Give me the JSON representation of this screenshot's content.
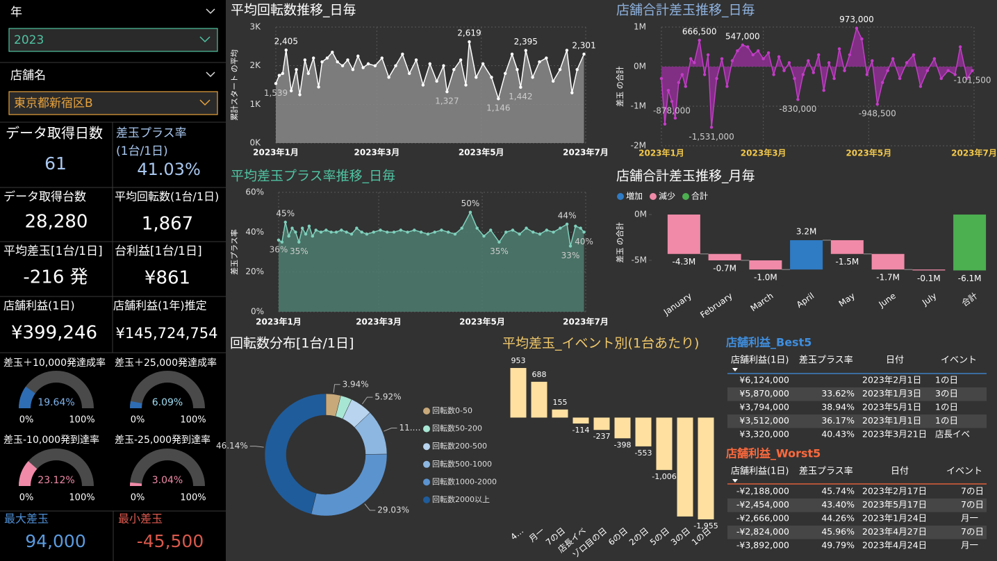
{
  "slicers": [
    {
      "label": "年",
      "selected": "2023",
      "color": "#4fc3a1"
    },
    {
      "label": "店舗名",
      "selected": "東京都新宿区B",
      "color": "#e8a33d"
    }
  ],
  "kpis": [
    {
      "title": "データ取得日数",
      "value": "61"
    },
    {
      "title": "差玉プラス率",
      "subtitle": "(1台/1日)",
      "value": "41.03%"
    },
    {
      "title": "データ取得台数",
      "value": "28,280"
    },
    {
      "title": "平均回転数(1台/1日)",
      "value": "1,867"
    },
    {
      "title": "平均差玉[1台/1日]",
      "value": "-216 発"
    },
    {
      "title": "台利益[1台/1日]",
      "value": "¥861"
    },
    {
      "title": "店舗利益(1日)",
      "value": "¥399,246"
    },
    {
      "title": "店舗利益(1年)推定",
      "value": "¥145,724,754"
    },
    {
      "title": "最大差玉",
      "value": "94,000"
    },
    {
      "title": "最小差玉",
      "value": "-45,500"
    }
  ],
  "gauges": [
    {
      "title": "差玉＋10,000発達成率",
      "value": 19.64,
      "value_label": "19.64%",
      "range": [
        {
          "value": 0,
          "label": "0%"
        },
        {
          "value": 100,
          "label": "100%"
        }
      ],
      "color": "#2e6db4",
      "text_color": "#7fb2ea"
    },
    {
      "title": "差玉＋25,000発達成率",
      "value": 6.09,
      "value_label": "6.09%",
      "range": [
        {
          "value": 0,
          "label": "0%"
        },
        {
          "value": 100,
          "label": "100%"
        }
      ],
      "color": "#2e6db4",
      "text_color": "#9fdcf2"
    },
    {
      "title": "差玉-10,000発到達率",
      "value": 23.12,
      "value_label": "23.12%",
      "range": [
        {
          "value": 0,
          "label": "0%"
        },
        {
          "value": 100,
          "label": "100%"
        }
      ],
      "color": "#f08aa8",
      "text_color": "#f08aa8"
    },
    {
      "title": "差玉-25,000発到達率",
      "value": 3.04,
      "value_label": "3.04%",
      "range": [
        {
          "value": 0,
          "label": "0%"
        },
        {
          "value": 100,
          "label": "100%"
        }
      ],
      "color": "#f08aa8",
      "text_color": "#f08aa8"
    }
  ],
  "chart_data": [
    {
      "type": "area",
      "title": "平均回転数推移_日毎",
      "ylabel": "累計スタート の平均",
      "x": [
        0,
        2,
        4,
        6,
        9,
        12,
        14,
        17,
        19,
        22,
        25,
        27,
        30,
        33,
        36,
        39,
        42,
        45,
        48,
        51,
        54,
        58,
        62,
        66,
        70,
        74,
        78,
        82,
        86,
        90,
        94,
        98,
        100,
        104,
        108,
        111,
        113,
        117,
        121,
        126,
        130,
        134,
        138,
        141,
        143,
        146,
        150,
        154,
        158,
        162,
        166,
        170,
        173,
        176,
        180
      ],
      "values": [
        1539,
        1750,
        1800,
        2405,
        1350,
        1900,
        1250,
        2150,
        1800,
        2200,
        1450,
        2100,
        2200,
        2350,
        2100,
        2000,
        2150,
        1900,
        2250,
        1950,
        2050,
        2000,
        2200,
        1700,
        2000,
        2300,
        1800,
        2150,
        1500,
        2050,
        1600,
        2000,
        1327,
        1900,
        2150,
        1500,
        2619,
        1700,
        2050,
        1700,
        1146,
        1800,
        2300,
        1900,
        1442,
        2395,
        1700,
        2100,
        2200,
        1600,
        1900,
        2400,
        1300,
        1900,
        2301
      ],
      "value_labels": [
        "1,539",
        null,
        null,
        "2,405",
        null,
        null,
        null,
        null,
        null,
        null,
        null,
        null,
        null,
        null,
        null,
        null,
        null,
        null,
        null,
        null,
        null,
        null,
        null,
        null,
        null,
        null,
        null,
        null,
        null,
        null,
        null,
        null,
        "1,327",
        null,
        null,
        null,
        "2,619",
        null,
        null,
        null,
        "1,146",
        null,
        null,
        null,
        "1,442",
        "2,395",
        null,
        null,
        null,
        null,
        null,
        null,
        null,
        null,
        "2,301"
      ],
      "xlim": [
        0,
        181
      ],
      "xticks": [
        {
          "value": 0,
          "label": "2023年1月"
        },
        {
          "value": 59,
          "label": "2023年3月"
        },
        {
          "value": 120,
          "label": "2023年5月"
        },
        {
          "value": 181,
          "label": "2023年7月"
        }
      ],
      "ylim": [
        0,
        3000
      ],
      "yticks": [
        {
          "value": 0,
          "label": "0K"
        },
        {
          "value": 1000,
          "label": "1K"
        },
        {
          "value": 2000,
          "label": "2K"
        },
        {
          "value": 3000,
          "label": "3K"
        }
      ],
      "color": "#ffffff",
      "fill": "#8a8a8a",
      "grid": true
    },
    {
      "type": "area",
      "title": "店舗合計差玉推移_日毎",
      "ylabel": "差玉 の合計",
      "x": [
        0,
        2,
        4,
        6,
        8,
        10,
        12,
        14,
        17,
        19,
        22,
        25,
        27,
        29,
        32,
        35,
        38,
        41,
        44,
        47,
        50,
        53,
        56,
        59,
        62,
        65,
        68,
        71,
        74,
        77,
        79,
        82,
        85,
        88,
        91,
        94,
        97,
        100,
        103,
        106,
        109,
        113,
        116,
        119,
        122,
        125,
        128,
        131,
        134,
        138,
        142,
        146,
        150,
        154,
        158,
        162,
        166,
        170,
        173,
        177,
        180
      ],
      "values": [
        -300000,
        -1450000,
        -600000,
        -878000,
        -1300000,
        -400000,
        -200000,
        -500000,
        200000,
        100000,
        666500,
        -200000,
        300000,
        -1531000,
        -300000,
        200000,
        -500000,
        150000,
        400000,
        547000,
        500000,
        300000,
        400000,
        200000,
        350000,
        -200000,
        250000,
        -100000,
        100000,
        -300000,
        -830000,
        -200000,
        150000,
        -150000,
        300000,
        -600000,
        100000,
        -300000,
        450000,
        -100000,
        300000,
        973000,
        700000,
        -200000,
        150000,
        -948500,
        -400000,
        -100000,
        200000,
        -300000,
        100000,
        300000,
        -500000,
        -100000,
        200000,
        -300000,
        -100000,
        -200000,
        500000,
        -300000,
        -101500
      ],
      "value_labels": [
        null,
        null,
        null,
        "-878,000",
        null,
        null,
        null,
        null,
        null,
        null,
        "666,500",
        null,
        null,
        "-1,531,000",
        null,
        null,
        null,
        null,
        null,
        "547,000",
        null,
        null,
        null,
        null,
        null,
        null,
        null,
        null,
        null,
        null,
        "-830,000",
        null,
        null,
        null,
        null,
        null,
        null,
        null,
        null,
        null,
        null,
        "973,000",
        null,
        null,
        null,
        "-948,500",
        null,
        null,
        null,
        null,
        null,
        null,
        null,
        null,
        null,
        null,
        null,
        null,
        null,
        null,
        "-101,500"
      ],
      "xlim": [
        0,
        181
      ],
      "xticks": [
        {
          "value": 0,
          "label": "2023年1月"
        },
        {
          "value": 59,
          "label": "2023年3月"
        },
        {
          "value": 120,
          "label": "2023年5月"
        },
        {
          "value": 181,
          "label": "2023年7月"
        }
      ],
      "ylim": [
        -2000000,
        1000000
      ],
      "yticks": [
        {
          "value": -2000000,
          "label": "-2M"
        },
        {
          "value": -1000000,
          "label": "-1M"
        },
        {
          "value": 0,
          "label": "0M"
        },
        {
          "value": 1000000,
          "label": "1M"
        }
      ],
      "color": "#c43cc8",
      "fill": "#8e2f93",
      "grid": true
    },
    {
      "type": "area",
      "title": "平均差玉プラス率推移_日毎",
      "ylabel": "差玉プラス率",
      "x": [
        0,
        2,
        4,
        6,
        8,
        10,
        12,
        14,
        16,
        18,
        20,
        22,
        25,
        28,
        31,
        34,
        37,
        40,
        43,
        46,
        49,
        52,
        56,
        60,
        64,
        68,
        72,
        76,
        80,
        84,
        88,
        92,
        96,
        100,
        104,
        108,
        113,
        117,
        121,
        125,
        130,
        134,
        138,
        142,
        146,
        150,
        154,
        158,
        162,
        166,
        170,
        172,
        175,
        178,
        180
      ],
      "values": [
        36,
        35,
        45,
        38,
        42,
        40,
        35,
        42,
        39,
        43,
        38,
        41,
        40,
        41,
        40,
        40,
        41,
        40,
        39,
        42,
        40,
        39,
        40,
        41,
        40,
        40,
        41,
        40,
        41,
        40,
        39,
        40,
        41,
        40,
        39,
        42,
        50,
        42,
        38,
        41,
        35,
        40,
        41,
        39,
        42,
        40,
        39,
        41,
        40,
        42,
        44,
        33,
        43,
        42,
        40
      ],
      "value_labels": [
        "36%",
        null,
        "45%",
        null,
        null,
        null,
        "35%",
        null,
        null,
        null,
        null,
        null,
        null,
        null,
        null,
        null,
        null,
        null,
        null,
        null,
        null,
        null,
        null,
        null,
        null,
        null,
        null,
        null,
        null,
        null,
        null,
        null,
        null,
        null,
        null,
        null,
        "50%",
        null,
        null,
        null,
        "35%",
        null,
        null,
        null,
        null,
        null,
        null,
        null,
        null,
        null,
        "44%",
        "33%",
        null,
        null,
        "40%"
      ],
      "xlim": [
        0,
        181
      ],
      "xticks": [
        {
          "value": 0,
          "label": "2023年1月"
        },
        {
          "value": 59,
          "label": "2023年3月"
        },
        {
          "value": 120,
          "label": "2023年5月"
        },
        {
          "value": 181,
          "label": "2023年7月"
        }
      ],
      "ylim": [
        0,
        60
      ],
      "yticks": [
        {
          "value": 0,
          "label": "0%"
        },
        {
          "value": 20,
          "label": "20%"
        },
        {
          "value": 40,
          "label": "40%"
        },
        {
          "value": 60,
          "label": "60%"
        }
      ],
      "color": "#7fd1bd",
      "fill": "#4e7d6e",
      "grid": true
    },
    {
      "type": "waterfall",
      "title": "店舗合計差玉推移_月毎",
      "ylabel": "差玉 の合計",
      "legend": [
        {
          "name": "増加",
          "color": "#2f7bc4"
        },
        {
          "name": "減少",
          "color": "#f08aa8"
        },
        {
          "name": "合計",
          "color": "#4caf50"
        }
      ],
      "categories": [
        "January",
        "February",
        "March",
        "April",
        "May",
        "June",
        "July",
        "合計"
      ],
      "values": [
        -4300000,
        -700000,
        -1000000,
        3200000,
        -1500000,
        -1700000,
        -100000,
        -6100000
      ],
      "value_labels": [
        "-4.3M",
        "-0.7M",
        "-1.0M",
        "3.2M",
        "-1.5M",
        "-1.7M",
        "-0.1M",
        "-6.1M"
      ],
      "ylim": [
        -6100000,
        0
      ],
      "yticks": [
        {
          "value": -5000000,
          "label": "-5M"
        },
        {
          "value": 0,
          "label": "0M"
        }
      ],
      "grid": false
    },
    {
      "type": "pie",
      "title": "回転数分布[1台/1日]",
      "hole": true,
      "categories": [
        "回転数0-50",
        "回転数50-200",
        "回転数200-500",
        "回転数500-1000",
        "回転数1000-2000",
        "回転数2000以上"
      ],
      "values": [
        3.94,
        3.0,
        5.92,
        11.97,
        29.03,
        46.14
      ],
      "value_labels": [
        "3.94%",
        null,
        "5.92%",
        "11.…",
        "29.03%",
        "46.14%"
      ],
      "colors": [
        "#c8a97a",
        "#a8e6d4",
        "#b8d4ee",
        "#8db7e0",
        "#5b93cf",
        "#1f5c9b"
      ]
    },
    {
      "type": "bar",
      "title": "平均差玉_イベント別(1台あたり)",
      "categories": [
        "4…",
        "月一",
        "7の日",
        "店長イベ",
        "ゾロ目の日",
        "6の日",
        "2の日",
        "5の日",
        "3の日",
        "1の日"
      ],
      "values": [
        953,
        688,
        155,
        -114,
        -237,
        -398,
        -553,
        -1006,
        -1900,
        -1955
      ],
      "value_labels": [
        "953",
        "688",
        "155",
        "-114",
        "-237",
        "-398",
        "-553",
        "-1,006",
        null,
        "-1,955"
      ],
      "color": "#ffe0a0"
    }
  ],
  "tables": [
    {
      "title": "店舗利益_Best5",
      "color": "#3f8fe0",
      "headers": [
        "店舗利益(1日)",
        "差玉プラス率",
        "日付",
        "イベント"
      ],
      "rows": [
        [
          "¥6,124,000",
          null,
          "2023年2月1日",
          "1の日"
        ],
        [
          "¥5,870,000",
          "33.62%",
          "2023年1月3日",
          "3の日"
        ],
        [
          "¥3,794,000",
          "38.94%",
          "2023年5月1日",
          "1の日"
        ],
        [
          "¥3,512,000",
          "36.17%",
          "2023年1月1日",
          "1の日"
        ],
        [
          "¥3,320,000",
          "40.43%",
          "2023年3月21日",
          "店長イベ"
        ]
      ]
    },
    {
      "title": "店舗利益_Worst5",
      "color": "#ff6a3d",
      "headers": [
        "店舗利益(1日)",
        "差玉プラス率",
        "日付",
        "イベント"
      ],
      "rows": [
        [
          "-¥2,188,000",
          "45.74%",
          "2023年2月17日",
          "7の日"
        ],
        [
          "-¥2,454,000",
          "43.40%",
          "2023年5月17日",
          "7の日"
        ],
        [
          "-¥2,666,000",
          "44.26%",
          "2023年1月24日",
          "月一"
        ],
        [
          "-¥2,824,000",
          "45.96%",
          "2023年4月27日",
          "7の日"
        ],
        [
          "-¥3,892,000",
          "49.79%",
          "2023年4月24日",
          "月一"
        ]
      ]
    }
  ]
}
